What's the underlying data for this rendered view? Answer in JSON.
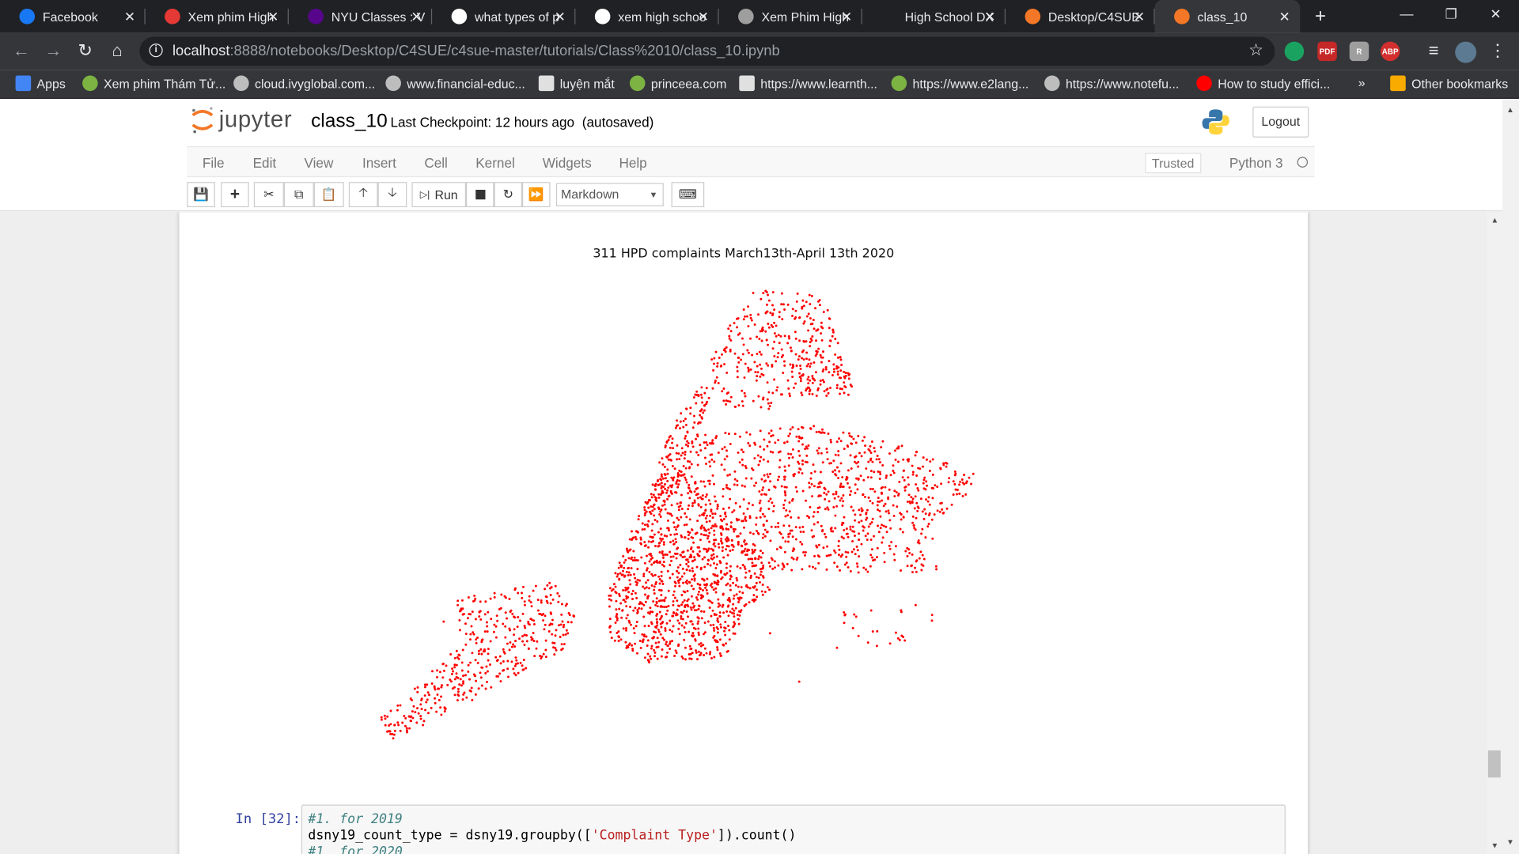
{
  "browser": {
    "tabs": [
      {
        "title": "Facebook",
        "icon": "facebook-icon",
        "color": "#1877f2",
        "active": false
      },
      {
        "title": "Xem phim High",
        "icon": "film-icon",
        "color": "#e53935",
        "active": false
      },
      {
        "title": "NYU Classes : V",
        "icon": "nyu-icon",
        "color": "#57068c",
        "active": false
      },
      {
        "title": "what types of p",
        "icon": "google-icon",
        "color": "#ffffff",
        "active": false
      },
      {
        "title": "xem high schoo",
        "icon": "google-icon",
        "color": "#ffffff",
        "active": false
      },
      {
        "title": "Xem Phim High",
        "icon": "film-icon",
        "color": "#9e9e9e",
        "active": false
      },
      {
        "title": "High School DX",
        "icon": "blank-icon",
        "color": "#202124",
        "active": false
      },
      {
        "title": "Desktop/C4SUE",
        "icon": "jupyter-icon",
        "color": "#f37726",
        "active": false
      },
      {
        "title": "class_10",
        "icon": "notebook-icon",
        "color": "#f37726",
        "active": true
      }
    ],
    "url_host": "localhost",
    "url_path": ":8888/notebooks/Desktop/C4SUE/c4sue-master/tutorials/Class%2010/class_10.ipynb",
    "bookmarks": [
      {
        "label": "Apps",
        "icon": "apps-grid-icon"
      },
      {
        "label": "Xem phim Thám Tử...",
        "icon": "site-icon"
      },
      {
        "label": "cloud.ivyglobal.com...",
        "icon": "globe-icon"
      },
      {
        "label": "www.financial-educ...",
        "icon": "globe-icon"
      },
      {
        "label": "luyện mắt",
        "icon": "page-icon"
      },
      {
        "label": "princeea.com",
        "icon": "site-icon"
      },
      {
        "label": "https://www.learnth...",
        "icon": "page-icon"
      },
      {
        "label": "https://www.e2lang...",
        "icon": "site-icon"
      },
      {
        "label": "https://www.notefu...",
        "icon": "globe-icon"
      },
      {
        "label": "How to study effici...",
        "icon": "youtube-icon"
      }
    ],
    "overflow_label": "»",
    "other_bookmarks": "Other bookmarks"
  },
  "jupyter": {
    "logo_text": "jupyter",
    "notebook_name": "class_10",
    "checkpoint": "Last Checkpoint: 12 hours ago",
    "autosave": "(autosaved)",
    "logout": "Logout",
    "menu": [
      "File",
      "Edit",
      "View",
      "Insert",
      "Cell",
      "Kernel",
      "Widgets",
      "Help"
    ],
    "trusted": "Trusted",
    "kernel_name": "Python 3",
    "run_label": "Run",
    "cell_type": "Markdown"
  },
  "output": {
    "plot_title": "311 HPD complaints March13th-April 13th 2020",
    "point_color": "#ff0000"
  },
  "code_cell": {
    "prompt": "In [32]:",
    "line1_comment": "#1. for 2019",
    "line2_a": "dsny19_count_type = dsny19.groupby([",
    "line2_str": "'Complaint Type'",
    "line2_b": "]).count()",
    "line3_comment": "#1. for 2020"
  }
}
